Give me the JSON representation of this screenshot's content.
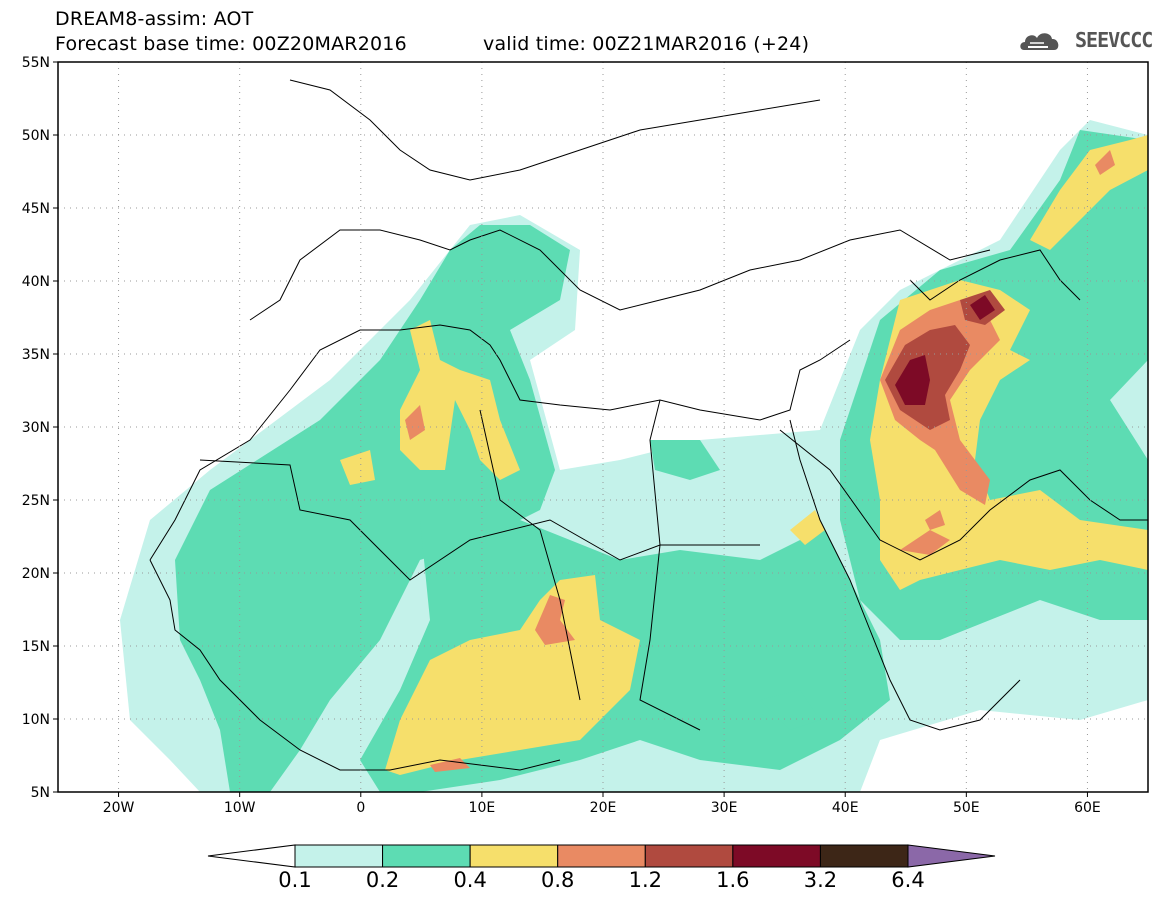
{
  "header": {
    "title": "DREAM8-assim: AOT",
    "base_time": "Forecast base time: 00Z20MAR2016",
    "valid_time": "valid time: 00Z21MAR2016 (+24)",
    "logo_text": "SEEVCCC",
    "logo_icon": "cloud-logo-icon"
  },
  "map": {
    "lon_range": [
      -25,
      65
    ],
    "lat_range": [
      5,
      55
    ],
    "grid": "dotted",
    "lat_ticks": [
      {
        "value": 55,
        "label": "55N"
      },
      {
        "value": 50,
        "label": "50N"
      },
      {
        "value": 45,
        "label": "45N"
      },
      {
        "value": 40,
        "label": "40N"
      },
      {
        "value": 35,
        "label": "35N"
      },
      {
        "value": 30,
        "label": "30N"
      },
      {
        "value": 25,
        "label": "25N"
      },
      {
        "value": 20,
        "label": "20N"
      },
      {
        "value": 15,
        "label": "15N"
      },
      {
        "value": 10,
        "label": "10N"
      },
      {
        "value": 5,
        "label": "5N"
      }
    ],
    "lon_ticks": [
      {
        "value": -20,
        "label": "20W"
      },
      {
        "value": -10,
        "label": "10W"
      },
      {
        "value": 0,
        "label": "0"
      },
      {
        "value": 10,
        "label": "10E"
      },
      {
        "value": 20,
        "label": "20E"
      },
      {
        "value": 30,
        "label": "30E"
      },
      {
        "value": 40,
        "label": "40E"
      },
      {
        "value": 50,
        "label": "50E"
      },
      {
        "value": 60,
        "label": "60E"
      }
    ]
  },
  "colorbar": {
    "levels": [
      "0.1",
      "0.2",
      "0.4",
      "0.8",
      "1.2",
      "1.6",
      "3.2",
      "6.4"
    ],
    "colors": [
      "#ffffff",
      "#c4f2ea",
      "#5ddcb3",
      "#f6df6b",
      "#e98a63",
      "#b04a3f",
      "#7d0a26",
      "#3d2617",
      "#8b68a8"
    ]
  }
}
